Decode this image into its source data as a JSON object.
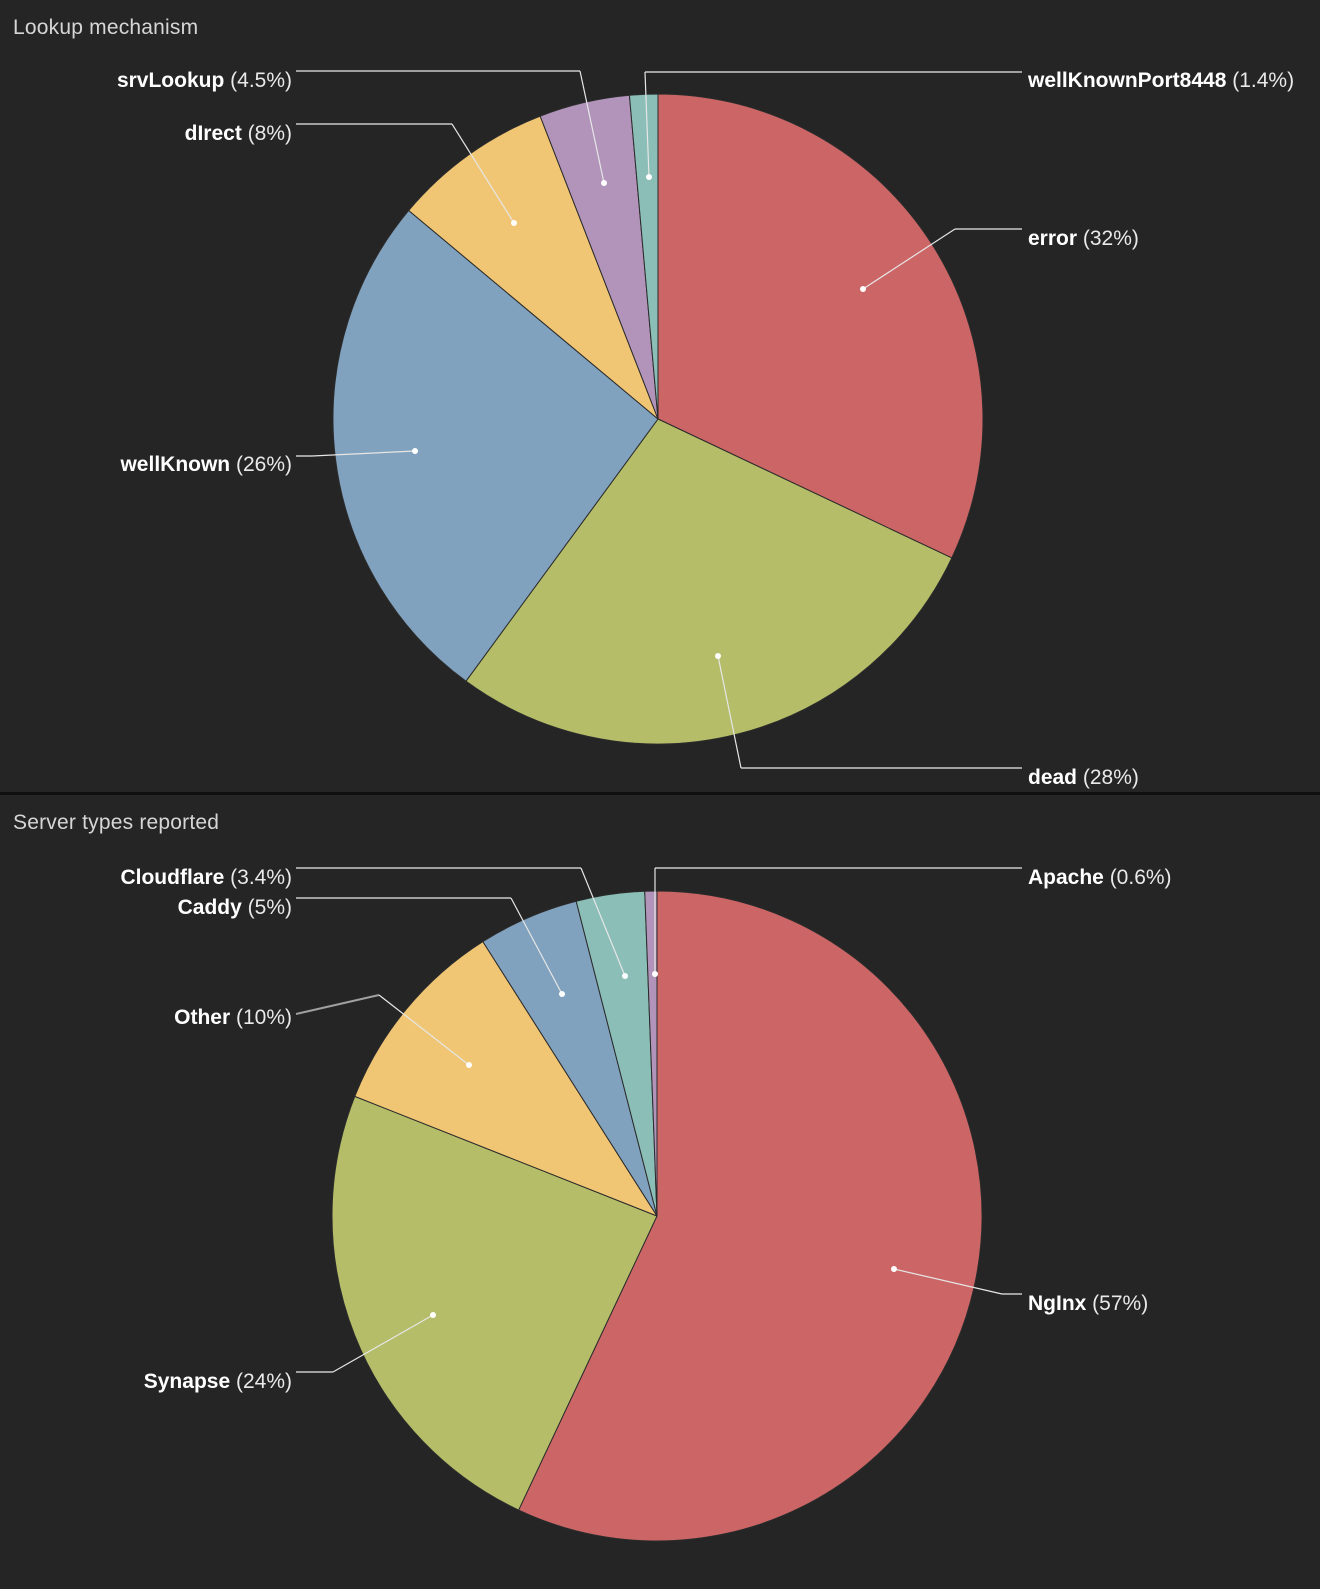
{
  "colors": {
    "background": "#252525",
    "divider": "#0f0f0f",
    "title_text": "#d6d6d6",
    "label_name_text": "#ffffff",
    "label_pct_text": "#e9e9e9",
    "leader_tick": "#a0a0a0",
    "leader_line": "#e6e6e6",
    "leader_dot": "#ffffff",
    "slice_outline": "#2b2b2b"
  },
  "chart_data": [
    {
      "type": "pie",
      "title": "Lookup mechanism",
      "unit": "%",
      "label_format": "name (value%)",
      "legend_position": "callout-labels",
      "slices": [
        {
          "label": "error",
          "value": 32,
          "color": "#cc6666"
        },
        {
          "label": "dead",
          "value": 28,
          "color": "#b5bd68"
        },
        {
          "label": "wellKnown",
          "value": 26,
          "color": "#81a2be"
        },
        {
          "label": "dIrect",
          "value": 8,
          "color": "#f0c674"
        },
        {
          "label": "srvLookup",
          "value": 4.5,
          "color": "#b294bb"
        },
        {
          "label": "wellKnownPort8448",
          "value": 1.4,
          "color": "#8abeb7"
        }
      ]
    },
    {
      "type": "pie",
      "title": "Server types reported",
      "unit": "%",
      "label_format": "name (value%)",
      "legend_position": "callout-labels",
      "slices": [
        {
          "label": "NgInx",
          "value": 57,
          "color": "#cc6666"
        },
        {
          "label": "Synapse",
          "value": 24,
          "color": "#b5bd68"
        },
        {
          "label": "Other",
          "value": 10,
          "color": "#f0c674"
        },
        {
          "label": "Caddy",
          "value": 5,
          "color": "#81a2be"
        },
        {
          "label": "Cloudflare",
          "value": 3.4,
          "color": "#8abeb7"
        },
        {
          "label": "Apache",
          "value": 0.6,
          "color": "#b294bb"
        }
      ]
    }
  ]
}
